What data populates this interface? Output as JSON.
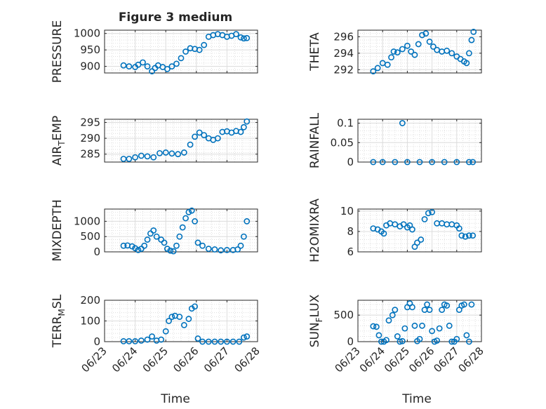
{
  "chart_data": {
    "type": "scatter",
    "title": "Figure 3 medium",
    "marker": "open-circle",
    "color": "#0072BD",
    "grid": true,
    "minor_grid": true,
    "x_ticks": [
      "06/23",
      "06/24",
      "06/25",
      "06/26",
      "06/27",
      "06/28"
    ],
    "x_range": [
      "06/23",
      "06/28"
    ],
    "xlabel": "Time",
    "panels": [
      {
        "ylabel": "PRESSURE",
        "ylim": [
          880,
          1010
        ],
        "yticks": [
          900,
          950,
          1000
        ],
        "x_dates": [
          0.62,
          0.8,
          1.0,
          1.1,
          1.25,
          1.4,
          1.55,
          1.65,
          1.75,
          1.9,
          2.05,
          2.2,
          2.35,
          2.5,
          2.65,
          2.8,
          2.95,
          3.1,
          3.25,
          3.4,
          3.55,
          3.7,
          3.85,
          4.0,
          4.15,
          4.3,
          4.45,
          4.55,
          4.65
        ],
        "values": [
          903,
          900,
          898,
          905,
          912,
          900,
          885,
          895,
          903,
          898,
          892,
          900,
          908,
          925,
          945,
          955,
          953,
          950,
          965,
          990,
          995,
          998,
          995,
          990,
          993,
          998,
          988,
          985,
          986
        ]
      },
      {
        "ylabel": "THETA",
        "ylim": [
          291.6,
          296.8
        ],
        "yticks": [
          292,
          294,
          296
        ],
        "x_dates": [
          0.62,
          0.8,
          1.0,
          1.2,
          1.35,
          1.45,
          1.6,
          1.8,
          2.0,
          2.15,
          2.3,
          2.45,
          2.6,
          2.75,
          2.9,
          3.05,
          3.2,
          3.4,
          3.6,
          3.8,
          4.0,
          4.15,
          4.3,
          4.4,
          4.5,
          4.6,
          4.68
        ],
        "values": [
          291.8,
          292.2,
          292.8,
          292.6,
          293.5,
          294.2,
          294.1,
          294.5,
          294.9,
          294.2,
          293.8,
          295.1,
          296.2,
          296.4,
          295.4,
          294.8,
          294.4,
          294.2,
          294.3,
          294.0,
          293.6,
          293.3,
          293.0,
          292.8,
          294.0,
          295.6,
          296.6
        ]
      },
      {
        "ylabel": "AIR_TEMP",
        "ylim": [
          282.5,
          296
        ],
        "yticks": [
          285,
          290,
          295
        ],
        "x_dates": [
          0.62,
          0.8,
          1.0,
          1.2,
          1.4,
          1.6,
          1.8,
          2.0,
          2.2,
          2.4,
          2.6,
          2.8,
          2.95,
          3.1,
          3.25,
          3.4,
          3.55,
          3.7,
          3.85,
          4.0,
          4.15,
          4.3,
          4.45,
          4.55,
          4.65
        ],
        "values": [
          283.5,
          283.5,
          284,
          284.5,
          284.3,
          284,
          285.3,
          285.5,
          285.2,
          285,
          285.5,
          288,
          290.5,
          291.8,
          291,
          290,
          289.5,
          290,
          292,
          292.2,
          291.8,
          292.3,
          292,
          293.5,
          295.3
        ]
      },
      {
        "ylabel": "RAINFALL",
        "ylim": [
          0,
          0.11
        ],
        "yticks": [
          0,
          0.05,
          0.1
        ],
        "tick_labels": [
          "0",
          "0.05",
          "0.1"
        ],
        "x_dates": [
          0.62,
          1.0,
          1.5,
          1.8,
          2.0,
          2.5,
          3.0,
          3.5,
          4.0,
          4.5,
          4.65
        ],
        "values": [
          0,
          0,
          0,
          0.1,
          0,
          0,
          0,
          0,
          0,
          0,
          0
        ]
      },
      {
        "ylabel": "MIXDEPTH",
        "ylim": [
          0,
          1400
        ],
        "yticks": [
          0,
          500,
          1000
        ],
        "x_dates": [
          0.62,
          0.75,
          0.9,
          1.0,
          1.1,
          1.2,
          1.3,
          1.4,
          1.5,
          1.6,
          1.7,
          1.85,
          1.95,
          2.05,
          2.15,
          2.25,
          2.35,
          2.45,
          2.55,
          2.65,
          2.75,
          2.85,
          2.95,
          3.05,
          3.2,
          3.4,
          3.6,
          3.8,
          4.0,
          4.2,
          4.35,
          4.45,
          4.55,
          4.65
        ],
        "values": [
          200,
          210,
          180,
          120,
          60,
          100,
          200,
          400,
          600,
          700,
          500,
          400,
          300,
          100,
          40,
          20,
          200,
          500,
          800,
          1100,
          1300,
          1350,
          1000,
          300,
          200,
          100,
          80,
          50,
          60,
          60,
          80,
          200,
          500,
          1000
        ]
      },
      {
        "ylabel": "H2OMIXRA",
        "ylim": [
          6,
          10.2
        ],
        "yticks": [
          6,
          8,
          10
        ],
        "x_dates": [
          0.62,
          0.8,
          0.95,
          1.05,
          1.15,
          1.3,
          1.5,
          1.7,
          1.85,
          2.0,
          2.1,
          2.2,
          2.3,
          2.4,
          2.55,
          2.7,
          2.85,
          3.0,
          3.2,
          3.4,
          3.6,
          3.8,
          4.0,
          4.1,
          4.2,
          4.35,
          4.5,
          4.65
        ],
        "values": [
          8.3,
          8.2,
          8.0,
          7.8,
          8.6,
          8.8,
          8.7,
          8.5,
          8.7,
          8.4,
          8.6,
          8.2,
          6.5,
          6.9,
          7.2,
          9.2,
          9.8,
          9.9,
          8.8,
          8.8,
          8.7,
          8.7,
          8.6,
          8.3,
          7.6,
          7.5,
          7.6,
          7.6
        ]
      },
      {
        "ylabel": "TERR_MSL",
        "ylim": [
          0,
          200
        ],
        "yticks": [
          0,
          100,
          200
        ],
        "x_dates": [
          0.62,
          0.8,
          1.0,
          1.2,
          1.4,
          1.55,
          1.7,
          1.85,
          2.0,
          2.1,
          2.2,
          2.3,
          2.45,
          2.6,
          2.75,
          2.85,
          2.95,
          3.05,
          3.2,
          3.4,
          3.6,
          3.8,
          4.0,
          4.2,
          4.4,
          4.55,
          4.65
        ],
        "values": [
          2,
          2,
          2,
          5,
          10,
          25,
          5,
          10,
          50,
          100,
          120,
          125,
          120,
          80,
          110,
          160,
          170,
          15,
          0,
          0,
          0,
          0,
          0,
          0,
          0,
          20,
          25
        ]
      },
      {
        "ylabel": "SUN_FLUX",
        "ylim": [
          0,
          780
        ],
        "yticks": [
          0,
          500
        ],
        "x_dates": [
          0.62,
          0.75,
          0.85,
          0.95,
          1.05,
          1.15,
          1.25,
          1.4,
          1.5,
          1.6,
          1.7,
          1.8,
          1.9,
          2.0,
          2.1,
          2.2,
          2.3,
          2.4,
          2.5,
          2.6,
          2.7,
          2.8,
          2.9,
          3.0,
          3.1,
          3.2,
          3.3,
          3.4,
          3.5,
          3.6,
          3.7,
          3.8,
          3.9,
          4.0,
          4.1,
          4.2,
          4.3,
          4.4,
          4.5,
          4.6
        ],
        "values": [
          290,
          280,
          120,
          0,
          0,
          30,
          400,
          500,
          600,
          100,
          0,
          10,
          250,
          650,
          720,
          650,
          300,
          10,
          50,
          300,
          600,
          700,
          600,
          200,
          0,
          20,
          250,
          600,
          700,
          680,
          300,
          0,
          0,
          50,
          600,
          680,
          700,
          120,
          0,
          700
        ]
      }
    ]
  }
}
